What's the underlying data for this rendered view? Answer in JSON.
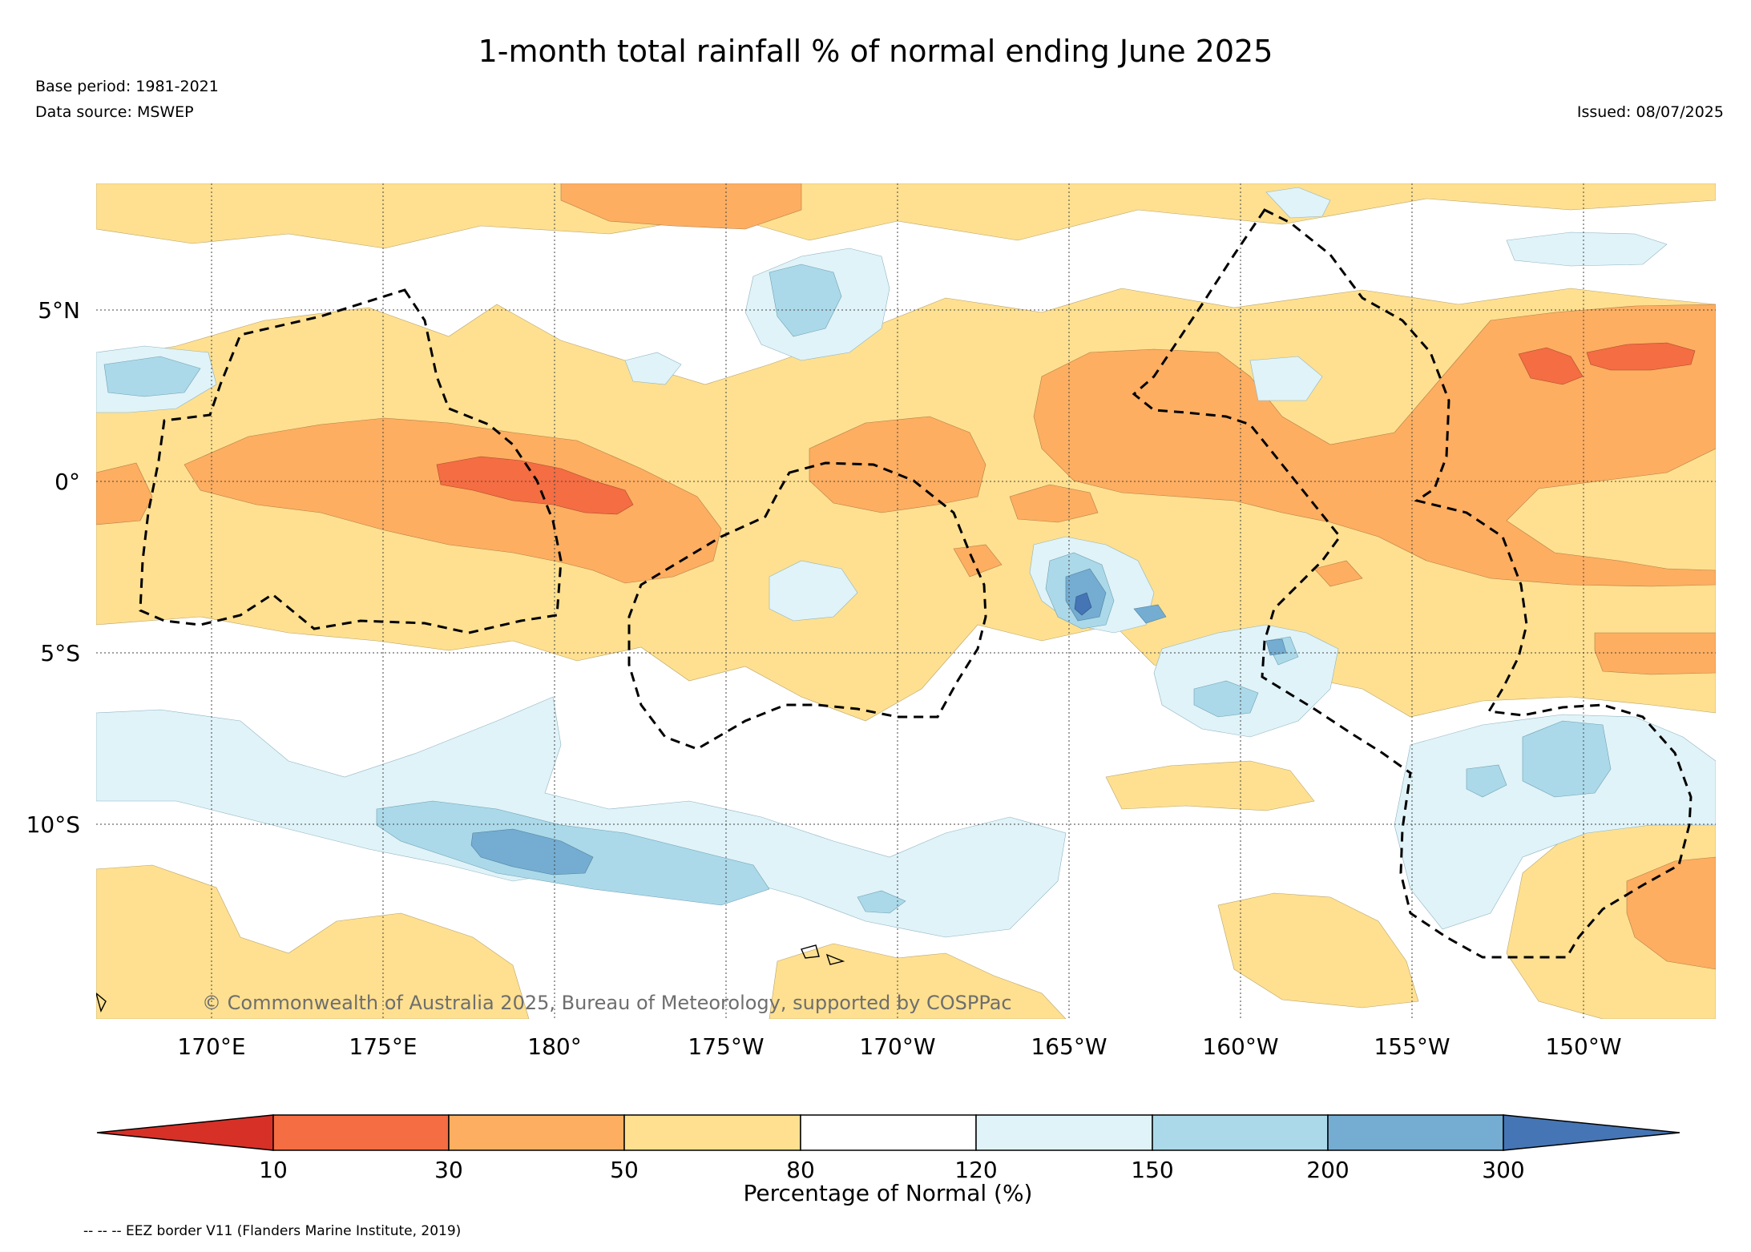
{
  "header": {
    "title": "1-month total rainfall % of normal ending June 2025",
    "base_period": "Base period: 1981-2021",
    "data_source": "Data source: MSWEP",
    "issued": "Issued: 08/07/2025"
  },
  "map": {
    "lat_labels": [
      "5°N",
      "0°",
      "5°S",
      "10°S"
    ],
    "lon_labels": [
      "170°E",
      "175°E",
      "180°",
      "175°W",
      "170°W",
      "165°W",
      "160°W",
      "155°W",
      "150°W"
    ],
    "lon_range": [
      166.6,
      213.8
    ],
    "lat_range": [
      -15.8,
      8.6
    ],
    "copyright": "© Commonwealth of Australia 2025, Bureau of Meteorology, supported by COSPPac",
    "eez_border_style": "black dashed"
  },
  "legend": {
    "label": "Percentage of Normal (%)",
    "ticks": [
      "10",
      "30",
      "50",
      "80",
      "120",
      "150",
      "200",
      "300"
    ],
    "classes": [
      {
        "range": "<10",
        "color": "#d73027"
      },
      {
        "range": "10-30",
        "color": "#f46d43"
      },
      {
        "range": "30-50",
        "color": "#fdae61"
      },
      {
        "range": "50-80",
        "color": "#fee090"
      },
      {
        "range": "80-120",
        "color": "#ffffff"
      },
      {
        "range": "120-150",
        "color": "#e0f3f8"
      },
      {
        "range": "150-200",
        "color": "#abd9e9"
      },
      {
        "range": "200-300",
        "color": "#74add1"
      },
      {
        "range": ">300",
        "color": "#4575b4"
      }
    ]
  },
  "footnote": "-- -- -- EEZ border V11 (Flanders Marine Institute, 2019)"
}
